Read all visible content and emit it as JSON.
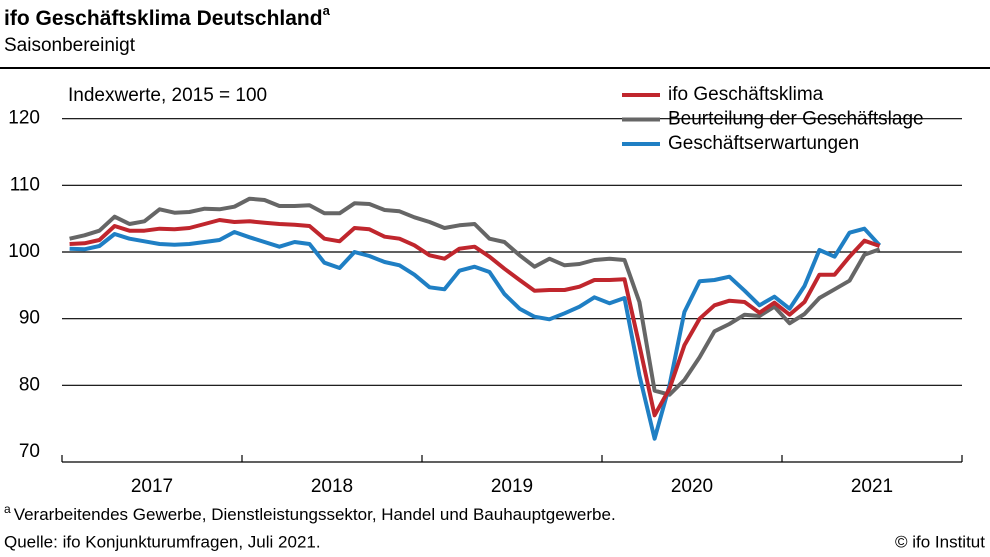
{
  "chart_data": {
    "type": "line",
    "title": "ifo Geschäftsklima Deutschland",
    "title_marker": "a",
    "subtitle": "Saisonbereinigt",
    "annotation": "Indexwerte, 2015 = 100",
    "footnote": "Verarbeitendes  Gewerbe,  Dienstleistungssektor,  Handel und Bauhauptgewerbe.",
    "source": "Quelle:  ifo Konjunkturumfragen,  Juli 2021.",
    "copyright": "© ifo Institut",
    "x": [
      2017.042,
      2017.125,
      2017.208,
      2017.292,
      2017.375,
      2017.458,
      2017.542,
      2017.625,
      2017.708,
      2017.792,
      2017.875,
      2017.958,
      2018.042,
      2018.125,
      2018.208,
      2018.292,
      2018.375,
      2018.458,
      2018.542,
      2018.625,
      2018.708,
      2018.792,
      2018.875,
      2018.958,
      2019.042,
      2019.125,
      2019.208,
      2019.292,
      2019.375,
      2019.458,
      2019.542,
      2019.625,
      2019.708,
      2019.792,
      2019.875,
      2019.958,
      2020.042,
      2020.125,
      2020.208,
      2020.292,
      2020.375,
      2020.458,
      2020.542,
      2020.625,
      2020.708,
      2020.792,
      2020.875,
      2020.958,
      2021.042,
      2021.125,
      2021.208,
      2021.292,
      2021.375,
      2021.458,
      2021.542
    ],
    "series": [
      {
        "name": "ifo Geschäftsklima",
        "color": "#c0262d",
        "values": [
          101.2,
          101.3,
          101.8,
          103.9,
          103.2,
          103.2,
          103.5,
          103.4,
          103.6,
          104.2,
          104.8,
          104.5,
          104.6,
          104.4,
          104.2,
          104.1,
          103.9,
          102.0,
          101.6,
          103.6,
          103.4,
          102.3,
          102.0,
          101.0,
          99.5,
          99.0,
          100.5,
          100.8,
          99.3,
          97.5,
          95.8,
          94.2,
          94.3,
          94.3,
          94.8,
          95.8,
          95.8,
          95.9,
          86.0,
          75.5,
          79.5,
          86.0,
          90.0,
          92.0,
          92.7,
          92.5,
          90.9,
          92.4,
          90.6,
          92.5,
          96.6,
          96.6,
          99.3,
          101.7,
          100.9
        ]
      },
      {
        "name": "Beurteilung der Geschäftslage",
        "color": "#666666",
        "values": [
          102.0,
          102.5,
          103.2,
          105.3,
          104.2,
          104.6,
          106.4,
          105.9,
          106.0,
          106.5,
          106.4,
          106.8,
          108.0,
          107.8,
          106.9,
          106.9,
          107.0,
          105.8,
          105.8,
          107.3,
          107.2,
          106.3,
          106.1,
          105.2,
          104.5,
          103.6,
          104.0,
          104.2,
          102.0,
          101.5,
          99.5,
          97.8,
          99.0,
          98.0,
          98.2,
          98.8,
          99.0,
          98.8,
          92.5,
          79.2,
          78.6,
          80.8,
          84.2,
          88.1,
          89.2,
          90.6,
          90.4,
          91.8,
          89.3,
          90.7,
          93.1,
          94.4,
          95.7,
          99.6,
          100.4
        ]
      },
      {
        "name": "Geschäftserwartungen",
        "color": "#1f7fc4",
        "values": [
          100.5,
          100.4,
          100.9,
          102.7,
          102.0,
          101.6,
          101.2,
          101.1,
          101.2,
          101.5,
          101.8,
          103.0,
          102.2,
          101.5,
          100.8,
          101.5,
          101.2,
          98.4,
          97.6,
          100.0,
          99.4,
          98.5,
          98.0,
          96.6,
          94.7,
          94.4,
          97.2,
          97.8,
          97.0,
          93.7,
          91.5,
          90.3,
          89.9,
          90.8,
          91.8,
          93.2,
          92.3,
          93.1,
          81.5,
          72.0,
          80.0,
          91.0,
          95.6,
          95.8,
          96.3,
          94.2,
          92.0,
          93.3,
          91.5,
          94.9,
          100.3,
          99.3,
          102.9,
          103.5,
          101.0
        ]
      }
    ],
    "xlim": [
      2017,
      2022
    ],
    "xticks": [
      {
        "value": 2017.5,
        "label": "2017"
      },
      {
        "value": 2018.5,
        "label": "2018"
      },
      {
        "value": 2019.5,
        "label": "2019"
      },
      {
        "value": 2020.5,
        "label": "2020"
      },
      {
        "value": 2021.5,
        "label": "2021"
      }
    ],
    "xminor": [
      2017,
      2018,
      2019,
      2020,
      2021,
      2022
    ],
    "ylim": [
      68.5,
      127.3
    ],
    "yticks": [
      70,
      80,
      90,
      100,
      110,
      120
    ],
    "grid": true,
    "legend": "upper right"
  }
}
